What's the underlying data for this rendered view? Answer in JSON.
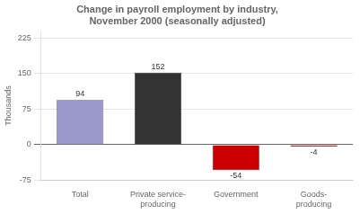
{
  "chart_data": {
    "type": "bar",
    "title": "Change in payroll employment by industry,\nNovember 2000 (seasonally adjusted)",
    "categories": [
      "Total",
      "Private service-\nproducing",
      "Government",
      "Goods-\nproducing"
    ],
    "values": [
      94,
      152,
      -54,
      -4
    ],
    "colors": [
      "#9999cc",
      "#333333",
      "#cc0000",
      "#cc0000"
    ],
    "ylabel": "Thousands",
    "ylim": [
      -75,
      240
    ],
    "yticks": [
      -75,
      0,
      75,
      150,
      225
    ],
    "grid": true,
    "data_labels": true
  }
}
